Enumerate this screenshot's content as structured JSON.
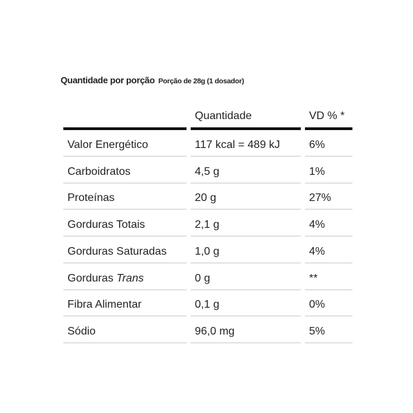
{
  "title": {
    "main": "Quantidade por porção",
    "serving": "Porção de 28g (1 dosador)"
  },
  "table": {
    "headers": [
      "",
      "Quantidade",
      "VD % *"
    ],
    "rows": [
      {
        "name": "Valor Energético",
        "name_italic": "",
        "amount": "117 kcal = 489 kJ",
        "vd": "6%"
      },
      {
        "name": "Carboidratos",
        "name_italic": "",
        "amount": "4,5 g",
        "vd": "1%"
      },
      {
        "name": "Proteínas",
        "name_italic": "",
        "amount": "20 g",
        "vd": "27%"
      },
      {
        "name": "Gorduras Totais",
        "name_italic": "",
        "amount": "2,1 g",
        "vd": "4%"
      },
      {
        "name": "Gorduras Saturadas",
        "name_italic": "",
        "amount": "1,0 g",
        "vd": "4%"
      },
      {
        "name": "Gorduras ",
        "name_italic": "Trans",
        "amount": "0 g",
        "vd": "**"
      },
      {
        "name": "Fibra Alimentar",
        "name_italic": "",
        "amount": "0,1 g",
        "vd": "0%"
      },
      {
        "name": "Sódio",
        "name_italic": "",
        "amount": "96,0 mg",
        "vd": "5%"
      }
    ]
  }
}
